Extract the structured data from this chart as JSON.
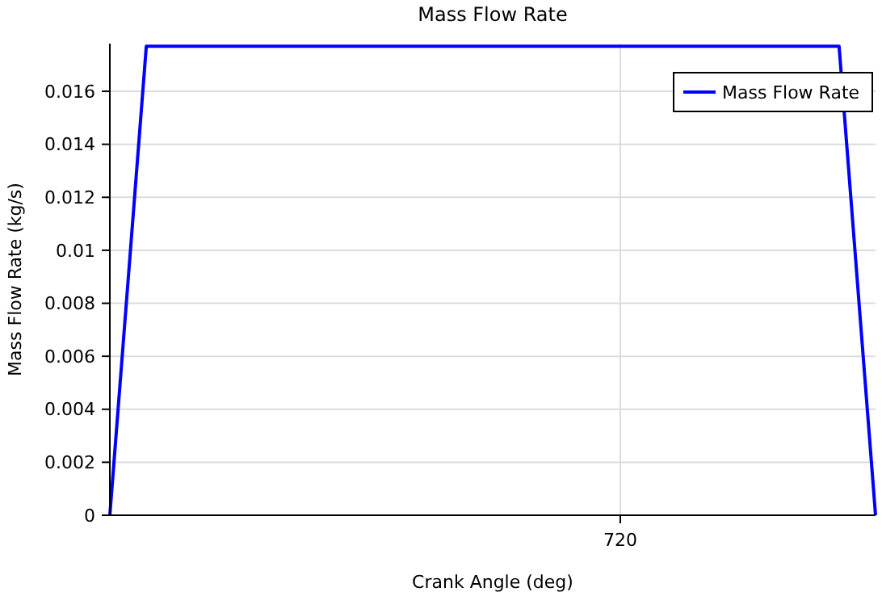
{
  "chart_data": {
    "type": "line",
    "title": "Mass Flow Rate",
    "xlabel": "Crank Angle  (deg)",
    "ylabel": "Mass Flow Rate  (kg/s)",
    "categories": [
      null,
      null,
      null,
      null,
      null,
      null,
      null,
      null,
      null,
      null,
      null,
      null,
      null,
      null,
      "720",
      null,
      null,
      null,
      null,
      null,
      null,
      null
    ],
    "series": [
      {
        "name": "Mass Flow Rate",
        "color": "#0000ff",
        "values": [
          0,
          0.0177,
          0.0177,
          0.0177,
          0.0177,
          0.0177,
          0.0177,
          0.0177,
          0.0177,
          0.0177,
          0.0177,
          0.0177,
          0.0177,
          0.0177,
          0.0177,
          0.0177,
          0.0177,
          0.0177,
          0.0177,
          0.0177,
          0.0177,
          0
        ]
      }
    ],
    "ylim": [
      0,
      0.0178
    ],
    "yticks": [
      0,
      0.002,
      0.004,
      0.006,
      0.008,
      0.01,
      0.012,
      0.014,
      0.016
    ],
    "grid": true,
    "legend": "top right"
  }
}
